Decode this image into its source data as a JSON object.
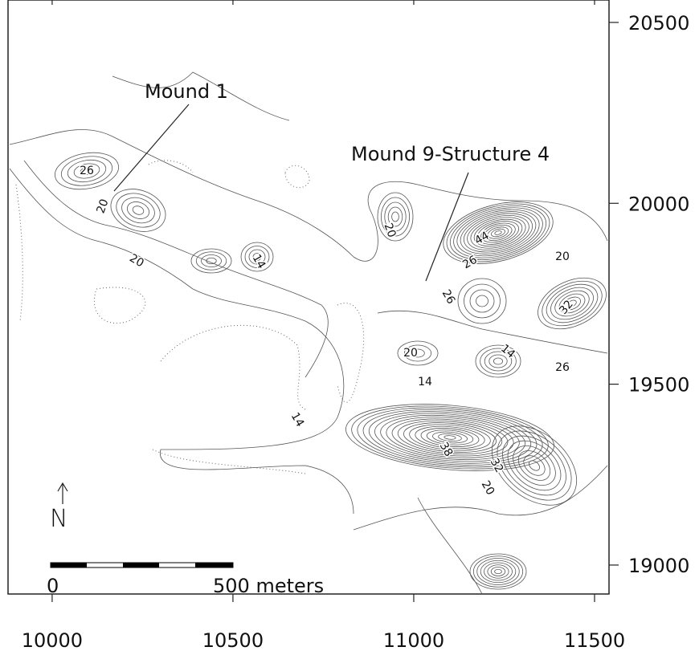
{
  "map": {
    "xlim": [
      9878,
      11540
    ],
    "ylim": [
      18920,
      20562
    ],
    "xticks": [
      10000,
      10500,
      11000,
      11500
    ],
    "yticks": [
      19000,
      19500,
      20000,
      20500
    ],
    "annotations": [
      "Mound 1",
      "Mound 9-Structure 4"
    ],
    "contour_labels": [
      26,
      20,
      20,
      14,
      20,
      44,
      26,
      20,
      26,
      32,
      20,
      14,
      26,
      14,
      14,
      38,
      32,
      20
    ],
    "scale_bar": {
      "labels": [
        "0",
        "500 meters"
      ]
    },
    "north_label": "N"
  }
}
